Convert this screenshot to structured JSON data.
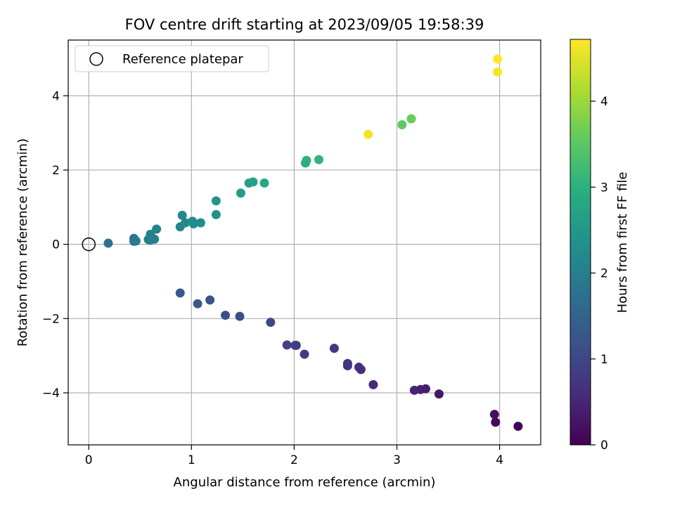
{
  "chart_data": {
    "type": "scatter",
    "title": "FOV centre drift starting at 2023/09/05 19:58:39",
    "xlabel": "Angular distance from reference (arcmin)",
    "ylabel": "Rotation from reference (arcmin)",
    "xlim": [
      -0.2,
      4.4
    ],
    "ylim": [
      -5.4,
      5.5
    ],
    "xticks": [
      0,
      1,
      2,
      3,
      4
    ],
    "xtick_labels": [
      "0",
      "1",
      "2",
      "3",
      "4"
    ],
    "yticks": [
      -4,
      -2,
      0,
      2,
      4
    ],
    "ytick_labels": [
      "−4",
      "−2",
      "0",
      "2",
      "4"
    ],
    "grid": true,
    "legend": {
      "location": "upper left",
      "entries": [
        {
          "label": "Reference platepar",
          "marker": "open-circle"
        }
      ]
    },
    "reference_point": {
      "x": 0,
      "y": 0
    },
    "colorbar": {
      "label": "Hours from first FF file",
      "colormap": "viridis",
      "range": [
        0,
        4.72
      ],
      "ticks": [
        0,
        1,
        2,
        3,
        4
      ],
      "tick_labels": [
        "0",
        "1",
        "2",
        "3",
        "4"
      ]
    },
    "points": [
      {
        "x": 4.18,
        "y": -4.9,
        "hours": 0.03
      },
      {
        "x": 3.96,
        "y": -4.79,
        "hours": 0.1
      },
      {
        "x": 3.95,
        "y": -4.58,
        "hours": 0.17
      },
      {
        "x": 3.41,
        "y": -4.03,
        "hours": 0.3
      },
      {
        "x": 3.28,
        "y": -3.89,
        "hours": 0.37
      },
      {
        "x": 3.23,
        "y": -3.91,
        "hours": 0.43
      },
      {
        "x": 3.17,
        "y": -3.93,
        "hours": 0.47
      },
      {
        "x": 2.77,
        "y": -3.78,
        "hours": 0.55
      },
      {
        "x": 2.65,
        "y": -3.37,
        "hours": 0.6
      },
      {
        "x": 2.63,
        "y": -3.31,
        "hours": 0.63
      },
      {
        "x": 2.52,
        "y": -3.27,
        "hours": 0.67
      },
      {
        "x": 2.52,
        "y": -3.21,
        "hours": 0.7
      },
      {
        "x": 2.39,
        "y": -2.8,
        "hours": 0.75
      },
      {
        "x": 2.1,
        "y": -2.96,
        "hours": 0.8
      },
      {
        "x": 2.02,
        "y": -2.72,
        "hours": 0.85
      },
      {
        "x": 2.01,
        "y": -2.72,
        "hours": 0.88
      },
      {
        "x": 1.93,
        "y": -2.71,
        "hours": 0.9
      },
      {
        "x": 1.77,
        "y": -2.1,
        "hours": 1.0
      },
      {
        "x": 1.47,
        "y": -1.94,
        "hours": 1.1
      },
      {
        "x": 1.33,
        "y": -1.91,
        "hours": 1.15
      },
      {
        "x": 1.18,
        "y": -1.5,
        "hours": 1.22
      },
      {
        "x": 1.06,
        "y": -1.6,
        "hours": 1.28
      },
      {
        "x": 0.89,
        "y": -1.31,
        "hours": 1.35
      },
      {
        "x": 0.19,
        "y": 0.03,
        "hours": 1.75
      },
      {
        "x": 0.44,
        "y": 0.08,
        "hours": 1.82
      },
      {
        "x": 0.44,
        "y": 0.16,
        "hours": 1.86
      },
      {
        "x": 0.46,
        "y": 0.09,
        "hours": 1.9
      },
      {
        "x": 0.58,
        "y": 0.13,
        "hours": 1.94
      },
      {
        "x": 0.6,
        "y": 0.11,
        "hours": 1.98
      },
      {
        "x": 0.6,
        "y": 0.27,
        "hours": 2.02
      },
      {
        "x": 0.64,
        "y": 0.14,
        "hours": 2.05
      },
      {
        "x": 0.66,
        "y": 0.41,
        "hours": 2.08
      },
      {
        "x": 0.89,
        "y": 0.47,
        "hours": 2.12
      },
      {
        "x": 0.91,
        "y": 0.78,
        "hours": 2.16
      },
      {
        "x": 0.94,
        "y": 0.58,
        "hours": 2.2
      },
      {
        "x": 1.01,
        "y": 0.62,
        "hours": 2.24
      },
      {
        "x": 1.02,
        "y": 0.55,
        "hours": 2.27
      },
      {
        "x": 1.09,
        "y": 0.58,
        "hours": 2.3
      },
      {
        "x": 1.24,
        "y": 0.8,
        "hours": 2.38
      },
      {
        "x": 1.24,
        "y": 1.17,
        "hours": 2.45
      },
      {
        "x": 1.48,
        "y": 1.38,
        "hours": 2.6
      },
      {
        "x": 1.56,
        "y": 1.65,
        "hours": 2.65
      },
      {
        "x": 1.6,
        "y": 1.68,
        "hours": 2.7
      },
      {
        "x": 1.71,
        "y": 1.65,
        "hours": 2.78
      },
      {
        "x": 2.11,
        "y": 2.19,
        "hours": 2.95
      },
      {
        "x": 2.12,
        "y": 2.26,
        "hours": 3.0
      },
      {
        "x": 2.24,
        "y": 2.28,
        "hours": 3.08
      },
      {
        "x": 2.72,
        "y": 2.96,
        "hours": 4.62
      },
      {
        "x": 3.05,
        "y": 3.22,
        "hours": 3.55
      },
      {
        "x": 3.14,
        "y": 3.38,
        "hours": 3.62
      },
      {
        "x": 3.98,
        "y": 4.99,
        "hours": 4.72
      },
      {
        "x": 3.98,
        "y": 4.64,
        "hours": 4.68
      }
    ]
  }
}
